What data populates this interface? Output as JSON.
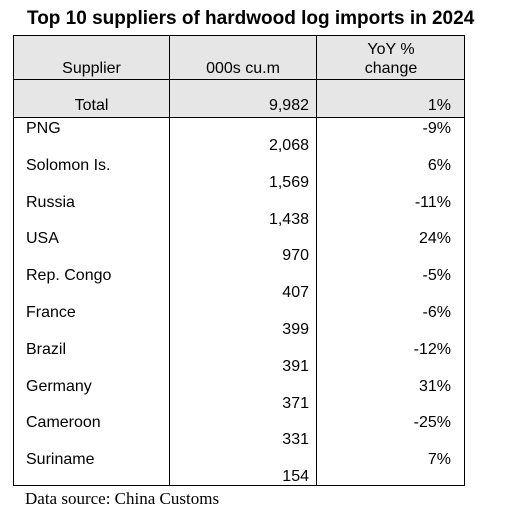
{
  "title": "Top 10 suppliers of hardwood log imports in 2024",
  "source": "Data source: China Customs",
  "chart_data": {
    "type": "table",
    "title": "Top 10 suppliers of hardwood log imports in 2024",
    "columns": [
      "Supplier",
      "000s cu.m",
      "YoY % change"
    ],
    "column_header_lines": {
      "supplier": "Supplier",
      "volume": "000s cu.m",
      "yoy_line1": "YoY %",
      "yoy_line2": "change"
    },
    "total": {
      "supplier": "Total",
      "volume": "9,982",
      "yoy": "1%"
    },
    "rows": [
      {
        "supplier": "PNG",
        "volume": "2,068",
        "yoy": "-9%"
      },
      {
        "supplier": "Solomon Is.",
        "volume": "1,569",
        "yoy": "6%"
      },
      {
        "supplier": "Russia",
        "volume": "1,438",
        "yoy": "-11%"
      },
      {
        "supplier": "USA",
        "volume": "970",
        "yoy": "24%"
      },
      {
        "supplier": "Rep. Congo",
        "volume": "407",
        "yoy": "-5%"
      },
      {
        "supplier": "France",
        "volume": "399",
        "yoy": "-6%"
      },
      {
        "supplier": "Brazil",
        "volume": "391",
        "yoy": "-12%"
      },
      {
        "supplier": "Germany",
        "volume": "371",
        "yoy": "31%"
      },
      {
        "supplier": "Cameroon",
        "volume": "331",
        "yoy": "-25%"
      },
      {
        "supplier": "Suriname",
        "volume": "154",
        "yoy": "7%"
      }
    ],
    "values": [
      2068,
      1569,
      1438,
      970,
      407,
      399,
      391,
      371,
      331,
      154
    ],
    "yoy_values": [
      -9,
      6,
      -11,
      24,
      -5,
      -6,
      -12,
      31,
      -25,
      7
    ]
  },
  "colors": {
    "header_fill": "#e6e6e6",
    "border": "#000000"
  }
}
